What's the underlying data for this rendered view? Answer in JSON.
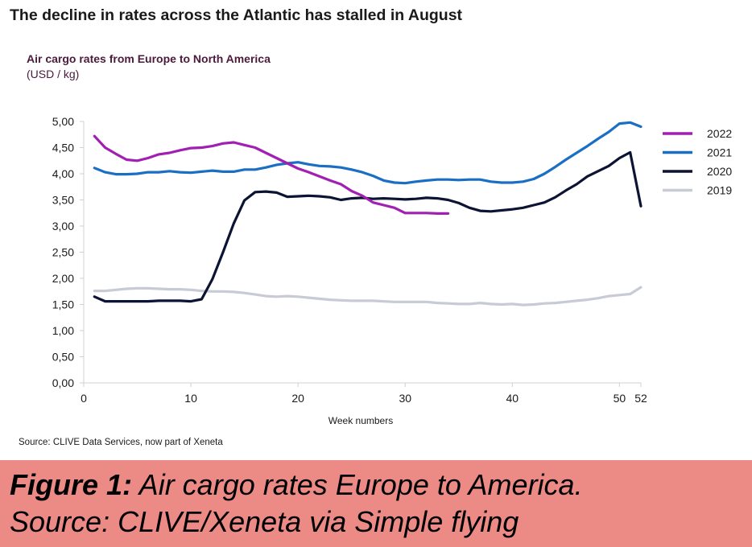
{
  "headline": "The decline in rates across the Atlantic has stalled in August",
  "source": "Source: CLIVE Data Services, now part of Xeneta",
  "caption": {
    "line1_bold": "Figure 1:",
    "line1_rest": " Air cargo rates Europe to America.",
    "line2": "Source: CLIVE/Xeneta via Simple flying"
  },
  "chart_data": {
    "type": "line",
    "title": "Air cargo rates from Europe to North America",
    "subtitle": "(USD / kg)",
    "xlabel": "Week numbers",
    "ylabel": "",
    "xlim": [
      0,
      52
    ],
    "ylim": [
      0,
      5
    ],
    "x_ticks": [
      "0",
      "10",
      "20",
      "30",
      "40",
      "50",
      "52"
    ],
    "x_tick_values": [
      0,
      10,
      20,
      30,
      40,
      50,
      52
    ],
    "y_ticks": [
      "0,00",
      "0,50",
      "1,00",
      "1,50",
      "2,00",
      "2,50",
      "3,00",
      "3,50",
      "4,00",
      "4,50",
      "5,00"
    ],
    "y_tick_values": [
      0,
      0.5,
      1,
      1.5,
      2,
      2.5,
      3,
      3.5,
      4,
      4.5,
      5
    ],
    "grid": false,
    "legend_position": "right",
    "series": [
      {
        "name": "2022",
        "color": "#a21fb3",
        "x": [
          1,
          2,
          3,
          4,
          5,
          6,
          7,
          8,
          9,
          10,
          11,
          12,
          13,
          14,
          15,
          16,
          17,
          18,
          19,
          20,
          21,
          22,
          23,
          24,
          25,
          26,
          27,
          28,
          29,
          30,
          31,
          32,
          33,
          34
        ],
        "values": [
          4.72,
          4.5,
          4.38,
          4.27,
          4.25,
          4.3,
          4.37,
          4.4,
          4.45,
          4.49,
          4.5,
          4.53,
          4.58,
          4.6,
          4.55,
          4.5,
          4.4,
          4.3,
          4.2,
          4.1,
          4.03,
          3.95,
          3.87,
          3.8,
          3.67,
          3.58,
          3.45,
          3.4,
          3.35,
          3.25,
          3.25,
          3.25,
          3.24,
          3.24
        ]
      },
      {
        "name": "2021",
        "color": "#1a6fc4",
        "x": [
          1,
          2,
          3,
          4,
          5,
          6,
          7,
          8,
          9,
          10,
          11,
          12,
          13,
          14,
          15,
          16,
          17,
          18,
          19,
          20,
          21,
          22,
          23,
          24,
          25,
          26,
          27,
          28,
          29,
          30,
          31,
          32,
          33,
          34,
          35,
          36,
          37,
          38,
          39,
          40,
          41,
          42,
          43,
          44,
          45,
          46,
          47,
          48,
          49,
          50,
          51,
          52
        ],
        "values": [
          4.11,
          4.03,
          3.99,
          3.99,
          4.0,
          4.03,
          4.03,
          4.05,
          4.03,
          4.02,
          4.04,
          4.06,
          4.04,
          4.04,
          4.08,
          4.08,
          4.12,
          4.17,
          4.2,
          4.22,
          4.18,
          4.15,
          4.14,
          4.12,
          4.08,
          4.03,
          3.96,
          3.87,
          3.83,
          3.82,
          3.85,
          3.87,
          3.89,
          3.89,
          3.88,
          3.89,
          3.89,
          3.85,
          3.83,
          3.83,
          3.85,
          3.9,
          4.0,
          4.13,
          4.27,
          4.4,
          4.53,
          4.67,
          4.8,
          4.96,
          4.98,
          4.9
        ]
      },
      {
        "name": "2020",
        "color": "#0d1433",
        "x": [
          1,
          2,
          3,
          4,
          5,
          6,
          7,
          8,
          9,
          10,
          11,
          12,
          13,
          14,
          15,
          16,
          17,
          18,
          19,
          20,
          21,
          22,
          23,
          24,
          25,
          26,
          27,
          28,
          29,
          30,
          31,
          32,
          33,
          34,
          35,
          36,
          37,
          38,
          39,
          40,
          41,
          42,
          43,
          44,
          45,
          46,
          47,
          48,
          49,
          50,
          51,
          52
        ],
        "values": [
          1.65,
          1.56,
          1.56,
          1.56,
          1.56,
          1.56,
          1.57,
          1.57,
          1.57,
          1.56,
          1.6,
          1.98,
          2.5,
          3.05,
          3.49,
          3.65,
          3.66,
          3.64,
          3.56,
          3.57,
          3.58,
          3.57,
          3.55,
          3.5,
          3.53,
          3.54,
          3.52,
          3.53,
          3.52,
          3.51,
          3.52,
          3.54,
          3.53,
          3.5,
          3.44,
          3.35,
          3.29,
          3.28,
          3.3,
          3.32,
          3.35,
          3.4,
          3.45,
          3.55,
          3.68,
          3.8,
          3.95,
          4.05,
          4.15,
          4.3,
          4.41,
          3.38
        ]
      },
      {
        "name": "2019",
        "color": "#c8cbd6",
        "x": [
          1,
          2,
          3,
          4,
          5,
          6,
          7,
          8,
          9,
          10,
          11,
          12,
          13,
          14,
          15,
          16,
          17,
          18,
          19,
          20,
          21,
          22,
          23,
          24,
          25,
          26,
          27,
          28,
          29,
          30,
          31,
          32,
          33,
          34,
          35,
          36,
          37,
          38,
          39,
          40,
          41,
          42,
          43,
          44,
          45,
          46,
          47,
          48,
          49,
          50,
          51,
          52
        ],
        "values": [
          1.76,
          1.76,
          1.78,
          1.8,
          1.81,
          1.81,
          1.8,
          1.79,
          1.79,
          1.78,
          1.76,
          1.75,
          1.75,
          1.74,
          1.72,
          1.69,
          1.66,
          1.65,
          1.66,
          1.65,
          1.63,
          1.61,
          1.59,
          1.58,
          1.57,
          1.57,
          1.57,
          1.56,
          1.55,
          1.55,
          1.55,
          1.55,
          1.53,
          1.52,
          1.51,
          1.51,
          1.53,
          1.51,
          1.5,
          1.51,
          1.49,
          1.5,
          1.52,
          1.53,
          1.55,
          1.57,
          1.59,
          1.62,
          1.66,
          1.68,
          1.7,
          1.83
        ]
      }
    ]
  }
}
